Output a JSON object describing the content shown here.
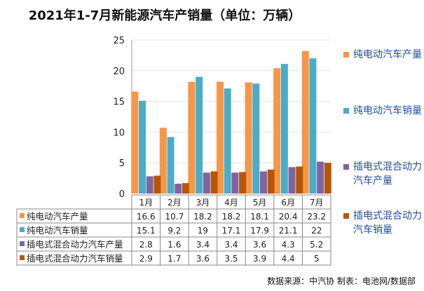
{
  "chart_data": {
    "type": "bar",
    "title": "2021年1-7月新能源汽车产销量（单位：万辆）",
    "categories": [
      "1月",
      "2月",
      "3月",
      "4月",
      "5月",
      "6月",
      "7月"
    ],
    "ylim": [
      0,
      25
    ],
    "yticks": [
      0,
      5,
      10,
      15,
      20,
      25
    ],
    "grid": true,
    "legend_position": "right",
    "data_table": true,
    "series": [
      {
        "name": "纯电动汽车产量",
        "color": "#F79646",
        "values": [
          16.6,
          10.7,
          18.2,
          18.2,
          18.1,
          20.4,
          23.2
        ]
      },
      {
        "name": "纯电动汽车销量",
        "color": "#4BACC6",
        "values": [
          15.1,
          9.2,
          19,
          17.1,
          17.9,
          21.1,
          22
        ]
      },
      {
        "name": "插电式混合动力汽车产量",
        "color": "#8064A2",
        "values": [
          2.8,
          1.6,
          3.4,
          3.4,
          3.6,
          4.3,
          5.2
        ]
      },
      {
        "name": "插电式混合动力汽车销量",
        "color": "#B65708",
        "values": [
          2.9,
          1.7,
          3.6,
          3.5,
          3.9,
          4.4,
          5
        ]
      }
    ]
  },
  "footer": "数据来源：中汽协 制表：电池网/数据部"
}
